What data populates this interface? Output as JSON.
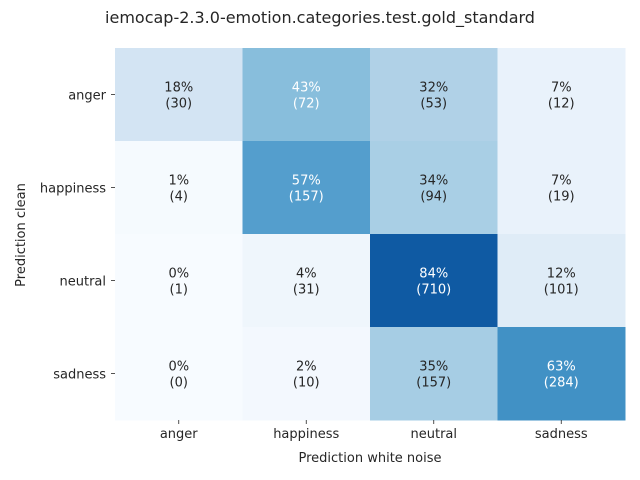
{
  "chart_data": {
    "type": "heatmap",
    "title": "iemocap-2.3.0-emotion.categories.test.gold_standard",
    "xlabel": "Prediction white noise",
    "ylabel": "Prediction clean",
    "x_categories": [
      "anger",
      "happiness",
      "neutral",
      "sadness"
    ],
    "y_categories": [
      "anger",
      "happiness",
      "neutral",
      "sadness"
    ],
    "colormap": "Blues",
    "colorbar": false,
    "cells": [
      [
        {
          "percent": "18%",
          "count": "(30)",
          "value": 30
        },
        {
          "percent": "43%",
          "count": "(72)",
          "value": 72
        },
        {
          "percent": "32%",
          "count": "(53)",
          "value": 53
        },
        {
          "percent": "7%",
          "count": "(12)",
          "value": 12
        }
      ],
      [
        {
          "percent": "1%",
          "count": "(4)",
          "value": 4
        },
        {
          "percent": "57%",
          "count": "(157)",
          "value": 157
        },
        {
          "percent": "34%",
          "count": "(94)",
          "value": 94
        },
        {
          "percent": "7%",
          "count": "(19)",
          "value": 19
        }
      ],
      [
        {
          "percent": "0%",
          "count": "(1)",
          "value": 1
        },
        {
          "percent": "4%",
          "count": "(31)",
          "value": 31
        },
        {
          "percent": "84%",
          "count": "(710)",
          "value": 710
        },
        {
          "percent": "12%",
          "count": "(101)",
          "value": 101
        }
      ],
      [
        {
          "percent": "0%",
          "count": "(0)",
          "value": 0
        },
        {
          "percent": "2%",
          "count": "(10)",
          "value": 10
        },
        {
          "percent": "35%",
          "count": "(157)",
          "value": 157
        },
        {
          "percent": "63%",
          "count": "(284)",
          "value": 284
        }
      ]
    ],
    "cell_fill_levels": [
      [
        0.18,
        0.43,
        0.32,
        0.07
      ],
      [
        0.01,
        0.57,
        0.34,
        0.07
      ],
      [
        0.0,
        0.04,
        0.84,
        0.12
      ],
      [
        0.0,
        0.02,
        0.35,
        0.63
      ]
    ]
  }
}
